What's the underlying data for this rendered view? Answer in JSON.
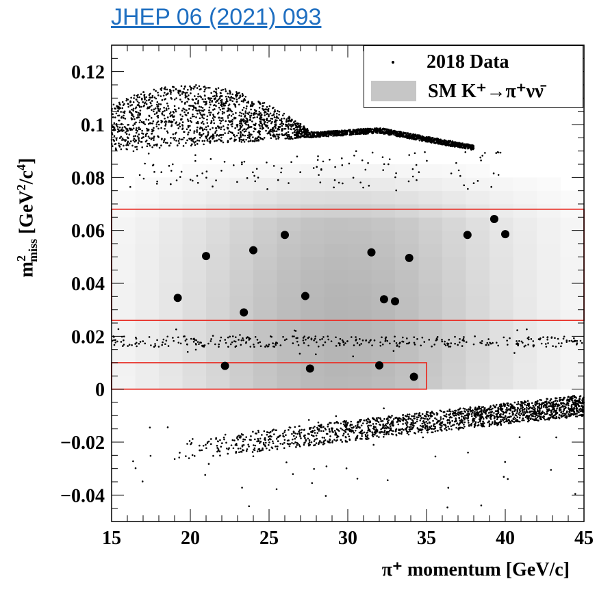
{
  "header": {
    "citation_link": "JHEP 06 (2021) 093"
  },
  "chart_data": {
    "type": "scatter",
    "title": "",
    "xlabel": "π⁺ momentum [GeV/c]",
    "ylabel_parts": {
      "m": "m",
      "sup": "2",
      "sub": "miss",
      "units": " [GeV",
      "units_sup1": "2",
      "units_mid": "/c",
      "units_sup2": "4",
      "units_end": "]"
    },
    "xlim": [
      15,
      45
    ],
    "ylim": [
      -0.05,
      0.13
    ],
    "x_ticks": [
      15,
      20,
      25,
      30,
      35,
      40,
      45
    ],
    "x_tick_labels": [
      "15",
      "20",
      "25",
      "30",
      "35",
      "40",
      "45"
    ],
    "y_ticks": [
      -0.04,
      -0.02,
      0,
      0.02,
      0.04,
      0.06,
      0.08,
      0.1,
      0.12
    ],
    "y_tick_labels": [
      "−0.04",
      "−0.02",
      "0",
      "0.02",
      "0.04",
      "0.06",
      "0.08",
      "0.1",
      "0.12"
    ],
    "legend": {
      "placement": "top-right",
      "entries": [
        {
          "label": "2018 Data",
          "marker": "dot"
        },
        {
          "label": "SM K⁺→π⁺νν̄",
          "marker": "gray-box"
        }
      ]
    },
    "signal_regions": [
      {
        "x": [
          15,
          45
        ],
        "y": [
          0.026,
          0.068
        ],
        "color": "#e8332b"
      },
      {
        "x": [
          15,
          35
        ],
        "y": [
          0.0,
          0.01
        ],
        "color": "#e8332b"
      }
    ],
    "candidate_events": [
      {
        "x": 19.2,
        "y": 0.0345
      },
      {
        "x": 21.0,
        "y": 0.0503
      },
      {
        "x": 22.2,
        "y": 0.0088
      },
      {
        "x": 23.4,
        "y": 0.029
      },
      {
        "x": 24.0,
        "y": 0.0525
      },
      {
        "x": 26.0,
        "y": 0.0583
      },
      {
        "x": 27.3,
        "y": 0.0352
      },
      {
        "x": 27.6,
        "y": 0.0078
      },
      {
        "x": 31.5,
        "y": 0.0517
      },
      {
        "x": 32.0,
        "y": 0.009
      },
      {
        "x": 32.3,
        "y": 0.034
      },
      {
        "x": 33.0,
        "y": 0.0332
      },
      {
        "x": 33.9,
        "y": 0.0496
      },
      {
        "x": 34.2,
        "y": 0.0047
      },
      {
        "x": 37.6,
        "y": 0.0583
      },
      {
        "x": 39.3,
        "y": 0.0643
      },
      {
        "x": 40.0,
        "y": 0.0586
      }
    ],
    "background_clusters": {
      "k2pi_upper_band": {
        "x": [
          15,
          38
        ],
        "y_center": 0.1,
        "note": "dense Kmu2/K2pi band above signal regions"
      },
      "pi_plus_pi_zero_line": {
        "x": [
          15,
          45
        ],
        "y": 0.018
      },
      "kmu2_lower_band": {
        "x": [
          17,
          45
        ],
        "y": [
          -0.025,
          -0.005
        ]
      }
    },
    "sm_signal_shading_color": "#c6c6c6",
    "data_marker_color": "#000000"
  }
}
